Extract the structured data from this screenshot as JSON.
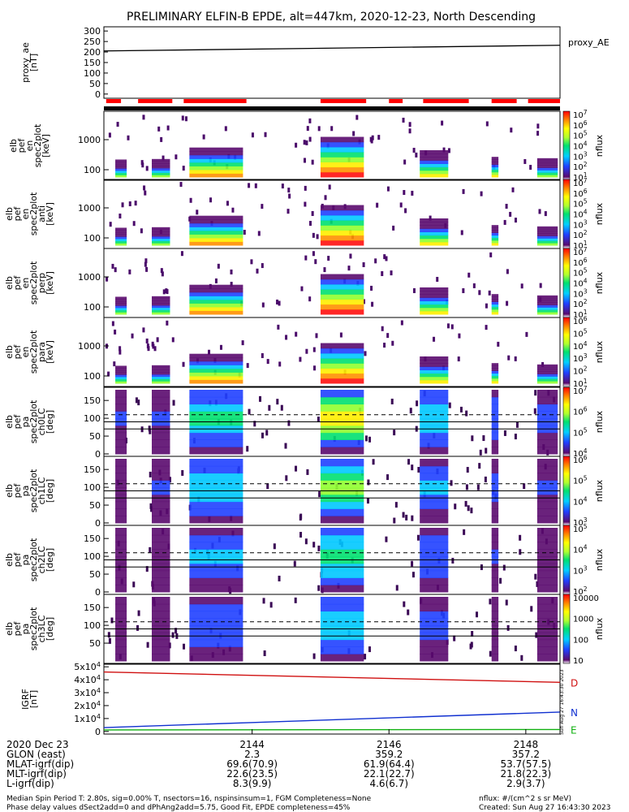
{
  "title": "PRELIMINARY ELFIN-B EPDE, alt=447km, 2020-12-23, North Descending",
  "chart_data": {
    "type": "heatmap",
    "x_range": [
      "2020-12-23T21:41:50",
      "2020-12-23T21:48:30"
    ],
    "x_tick_labels": [
      "2144",
      "2146",
      "2148"
    ],
    "x_tick_values": [
      "21:44",
      "21:46",
      "21:48"
    ],
    "proxy_ae": {
      "ylabel_lines": [
        "proxy_ae",
        "[nT]"
      ],
      "legend": "proxy_AE",
      "y_ticks": [
        "300",
        "250",
        "200",
        "150",
        "100",
        "50",
        "0"
      ],
      "ylim": [
        -20,
        320
      ],
      "series": [
        {
          "x": [
            "21:41:50",
            "21:48:30"
          ],
          "y": [
            205,
            232
          ]
        }
      ]
    },
    "phase_indicators": {
      "red_segments": [
        [
          "21:41:52",
          "21:42:05"
        ],
        [
          "21:42:20",
          "21:42:50"
        ],
        [
          "21:43:00",
          "21:43:55"
        ],
        [
          "21:45:00",
          "21:45:40"
        ],
        [
          "21:46:00",
          "21:46:12"
        ],
        [
          "21:46:30",
          "21:47:10"
        ],
        [
          "21:47:30",
          "21:47:52"
        ],
        [
          "21:48:02",
          "21:48:30"
        ]
      ]
    },
    "energy_panels": [
      {
        "ylabel_lines": [
          "elb",
          "pef",
          "en",
          "spec2plot",
          "[keV]"
        ],
        "y_ticks": [
          "1000",
          "100"
        ],
        "cbar_ticks": [
          "10^7",
          "10^6",
          "10^5",
          "10^4",
          "10^3",
          "10^2",
          "10^1"
        ],
        "cbar_label": "nflux"
      },
      {
        "ylabel_lines": [
          "elb",
          "pef",
          "en",
          "spec2plot",
          "anti",
          "[keV]"
        ],
        "y_ticks": [
          "1000",
          "100"
        ],
        "cbar_ticks": [
          "10^7",
          "10^6",
          "10^5",
          "10^4",
          "10^3",
          "10^2",
          "10^1"
        ],
        "cbar_label": "nflux"
      },
      {
        "ylabel_lines": [
          "elb",
          "pef",
          "en",
          "spec2plot",
          "perp",
          "[keV]"
        ],
        "y_ticks": [
          "1000",
          "100"
        ],
        "cbar_ticks": [
          "10^7",
          "10^6",
          "10^5",
          "10^4",
          "10^3",
          "10^2",
          "10^1"
        ],
        "cbar_label": "nflux"
      },
      {
        "ylabel_lines": [
          "elb",
          "pef",
          "en",
          "spec2plot",
          "para",
          "[keV]"
        ],
        "y_ticks": [
          "1000",
          "100"
        ],
        "cbar_ticks": [
          "10^6",
          "10^5",
          "10^4",
          "10^3",
          "10^2",
          "10^1"
        ],
        "cbar_label": "nflux"
      }
    ],
    "pitch_panels": [
      {
        "ylabel_lines": [
          "elb",
          "pef",
          "pa",
          "spec2plot",
          "ch0LC",
          "[deg]"
        ],
        "y_ticks": [
          "150",
          "100",
          "50",
          "0"
        ],
        "cbar_ticks": [
          "10^7",
          "10^6",
          "10^5",
          "10^4"
        ],
        "cbar_label": "nflux"
      },
      {
        "ylabel_lines": [
          "elb",
          "pef",
          "pa",
          "spec2plot",
          "ch1LC",
          "[deg]"
        ],
        "y_ticks": [
          "150",
          "100",
          "50",
          "0"
        ],
        "cbar_ticks": [
          "10^6",
          "10^5",
          "10^4",
          "10^3"
        ],
        "cbar_label": "nflux"
      },
      {
        "ylabel_lines": [
          "elb",
          "pef",
          "pa",
          "spec2plot",
          "ch2LC",
          "[deg]"
        ],
        "y_ticks": [
          "150",
          "100",
          "50",
          "0"
        ],
        "cbar_ticks": [
          "10^5",
          "10^4",
          "10^3",
          "10^2"
        ],
        "cbar_label": "nflux"
      },
      {
        "ylabel_lines": [
          "elb",
          "pef",
          "pa",
          "spec2plot",
          "ch3LC",
          "[deg]"
        ],
        "y_ticks": [
          "150",
          "100",
          "50"
        ],
        "cbar_ticks": [
          "10000",
          "1000",
          "100",
          "10"
        ],
        "cbar_label": "nflux"
      }
    ],
    "pitch_reference_lines": {
      "loss_cone_deg": [
        70,
        90
      ],
      "anti_loss_cone_dashed_deg": [
        110
      ]
    },
    "igrf": {
      "ylabel_lines": [
        "IGRF",
        "[nT]"
      ],
      "y_ticks": [
        "5x10^4",
        "4x10^4",
        "3x10^4",
        "2x10^4",
        "1x10^4",
        "0"
      ],
      "ylim": [
        -2000,
        52000
      ],
      "series": [
        {
          "name": "D",
          "color": "#d01010",
          "x": [
            "21:41:50",
            "21:48:30"
          ],
          "y": [
            46000,
            38000
          ]
        },
        {
          "name": "N",
          "color": "#1030d0",
          "x": [
            "21:41:50",
            "21:48:30"
          ],
          "y": [
            3000,
            15000
          ]
        },
        {
          "name": "E",
          "color": "#10b010",
          "x": [
            "21:41:50",
            "21:48:30"
          ],
          "y": [
            1200,
            1500
          ]
        }
      ]
    }
  },
  "footer_table": {
    "row_labels": [
      "2020 Dec 23",
      "GLON (east)",
      "MLAT-igrf(dip)",
      "MLT-igrf(dip)",
      "L-igrf(dip)"
    ],
    "columns": [
      {
        "time": "2144",
        "values": [
          "2.3",
          "69.6(70.9)",
          "22.6(23.5)",
          "8.3(9.9)"
        ]
      },
      {
        "time": "2146",
        "values": [
          "359.2",
          "61.9(64.4)",
          "22.1(22.7)",
          "4.6(6.7)"
        ]
      },
      {
        "time": "2148",
        "values": [
          "357.2",
          "53.7(57.5)",
          "21.8(22.3)",
          "2.9(3.7)"
        ]
      }
    ]
  },
  "notes": {
    "line1_left": "Median Spin Period T: 2.80s, sig=0.00% T, nsectors=16, nspinsinsum=1, FGM Completeness=None",
    "line2_left": "Phase delay values dSect2add=0 and dPhAng2add=5.75, Good Fit, EPDE completeness=45%",
    "line1_right": "nflux: #/(cm^2 s sr MeV)",
    "line2_right": "Created: Sun Aug 27 16:43:30 2023",
    "vertical_stamp": "Sun Aug 27 16:43:30 2023"
  }
}
